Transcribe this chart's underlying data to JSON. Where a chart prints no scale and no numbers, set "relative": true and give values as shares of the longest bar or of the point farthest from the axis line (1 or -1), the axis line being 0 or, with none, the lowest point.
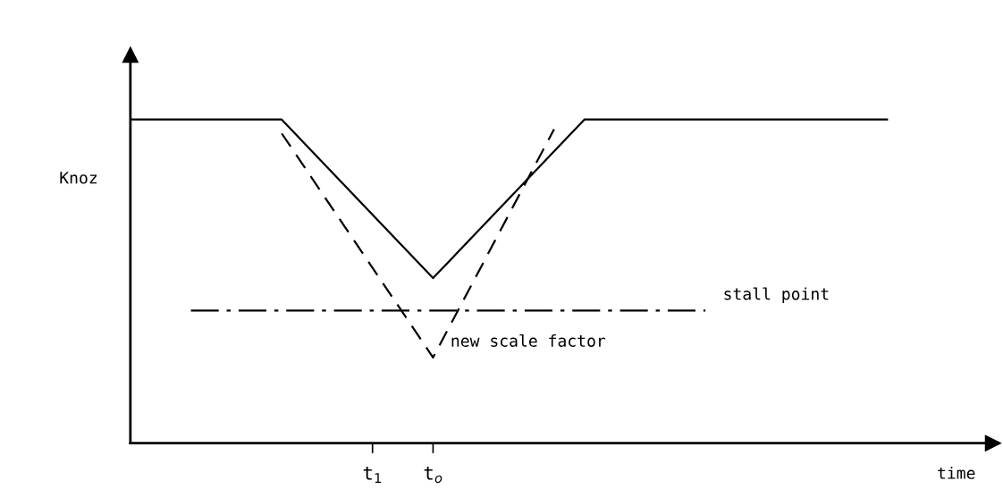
{
  "chart_data": {
    "type": "line",
    "relative": true,
    "ylabel": "Knoz",
    "xlabel": "time",
    "categories": [
      null,
      null,
      null,
      null,
      null,
      null,
      null,
      null,
      "t$_{1}$",
      null,
      "t$_{o}$",
      null,
      null,
      null,
      null,
      null,
      null,
      null,
      null,
      null,
      null,
      null,
      null,
      null,
      null,
      null
    ],
    "tick_labels": "x",
    "grid": false,
    "legend": false,
    "marker": "none",
    "series": [
      {
        "color": "#000000",
        "line_style": "solid",
        "values": [
          1,
          null,
          null,
          null,
          null,
          1,
          null,
          null,
          null,
          null,
          0.51,
          null,
          null,
          null,
          null,
          1,
          null,
          null,
          null,
          null,
          null,
          null,
          null,
          null,
          null,
          1
        ]
      },
      {
        "name": "new scale factor",
        "color": "#000000",
        "line_style": "dashed",
        "values": [
          null,
          null,
          null,
          null,
          null,
          0.957,
          null,
          null,
          null,
          null,
          0.265,
          null,
          null,
          null,
          0.97,
          null,
          null,
          null,
          null,
          null,
          null,
          null,
          null,
          null,
          null,
          null
        ]
      },
      {
        "name": "stall point",
        "color": "#000000",
        "line_style": "dashdot",
        "values": [
          null,
          null,
          0.41,
          null,
          null,
          null,
          null,
          null,
          null,
          null,
          null,
          null,
          null,
          null,
          null,
          null,
          null,
          null,
          null,
          0.41,
          null,
          null,
          null,
          null,
          null,
          null
        ]
      }
    ]
  }
}
